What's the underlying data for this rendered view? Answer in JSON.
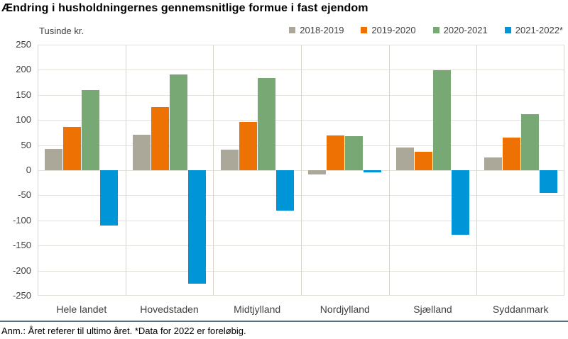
{
  "title": "Ændring i husholdningernes gennemsnitlige formue i fast ejendom",
  "y_axis_unit": "Tusinde kr.",
  "footnote": "Anm.: Året referer til ultimo året. *Data for 2022 er foreløbig.",
  "colors": {
    "series_gray": "#aba89a",
    "series_orange": "#ee7103",
    "series_green": "#78a873",
    "series_blue": "#0095d6",
    "gridline": "#e4e1da",
    "category_separator": "#d8d5cd",
    "footer_rule": "#56707e",
    "axis_text": "#3f3f3c"
  },
  "chart_data": {
    "type": "bar",
    "title": "Ændring i husholdningernes gennemsnitlige formue i fast ejendom",
    "xlabel": "",
    "ylabel": "Tusinde kr.",
    "ylim": [
      -250,
      250
    ],
    "ytick_step": 50,
    "grid": true,
    "legend_position": "top-right",
    "categories": [
      "Hele landet",
      "Hovedstaden",
      "Midtjylland",
      "Nordjylland",
      "Sjælland",
      "Syddanmark"
    ],
    "series": [
      {
        "name": "2018-2019",
        "color": "#aba89a",
        "values": [
          42,
          70,
          41,
          -8,
          45,
          26
        ]
      },
      {
        "name": "2019-2020",
        "color": "#ee7103",
        "values": [
          86,
          126,
          96,
          69,
          37,
          65
        ]
      },
      {
        "name": "2020-2021",
        "color": "#78a873",
        "values": [
          160,
          190,
          183,
          68,
          199,
          112
        ]
      },
      {
        "name": "2021-2022*",
        "color": "#0095d6",
        "values": [
          -110,
          -226,
          -81,
          -4,
          -128,
          -45
        ]
      }
    ]
  }
}
